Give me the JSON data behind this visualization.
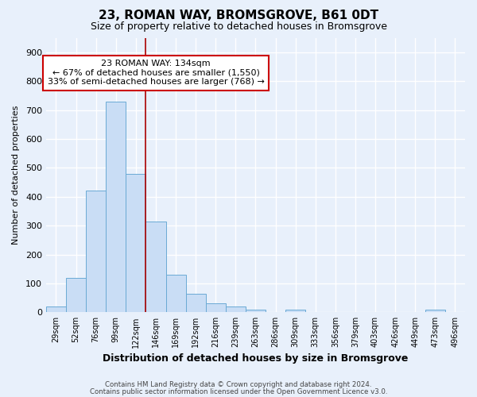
{
  "title": "23, ROMAN WAY, BROMSGROVE, B61 0DT",
  "subtitle": "Size of property relative to detached houses in Bromsgrove",
  "xlabel": "Distribution of detached houses by size in Bromsgrove",
  "ylabel": "Number of detached properties",
  "categories": [
    "29sqm",
    "52sqm",
    "76sqm",
    "99sqm",
    "122sqm",
    "146sqm",
    "169sqm",
    "192sqm",
    "216sqm",
    "239sqm",
    "263sqm",
    "286sqm",
    "309sqm",
    "333sqm",
    "356sqm",
    "379sqm",
    "403sqm",
    "426sqm",
    "449sqm",
    "473sqm",
    "496sqm"
  ],
  "values": [
    20,
    120,
    420,
    730,
    480,
    315,
    130,
    65,
    30,
    20,
    10,
    0,
    10,
    0,
    0,
    0,
    0,
    0,
    0,
    10,
    0
  ],
  "bar_color": "#c9ddf5",
  "bar_edge_color": "#6aaad4",
  "background_color": "#e8f0fb",
  "grid_color": "#ffffff",
  "red_line_x": 4.5,
  "annotation_text_line1": "23 ROMAN WAY: 134sqm",
  "annotation_text_line2": "← 67% of detached houses are smaller (1,550)",
  "annotation_text_line3": "33% of semi-detached houses are larger (768) →",
  "annotation_box_color": "#ffffff",
  "annotation_box_edge": "#cc0000",
  "ylim": [
    0,
    950
  ],
  "yticks": [
    0,
    100,
    200,
    300,
    400,
    500,
    600,
    700,
    800,
    900
  ],
  "footnote1": "Contains HM Land Registry data © Crown copyright and database right 2024.",
  "footnote2": "Contains public sector information licensed under the Open Government Licence v3.0."
}
